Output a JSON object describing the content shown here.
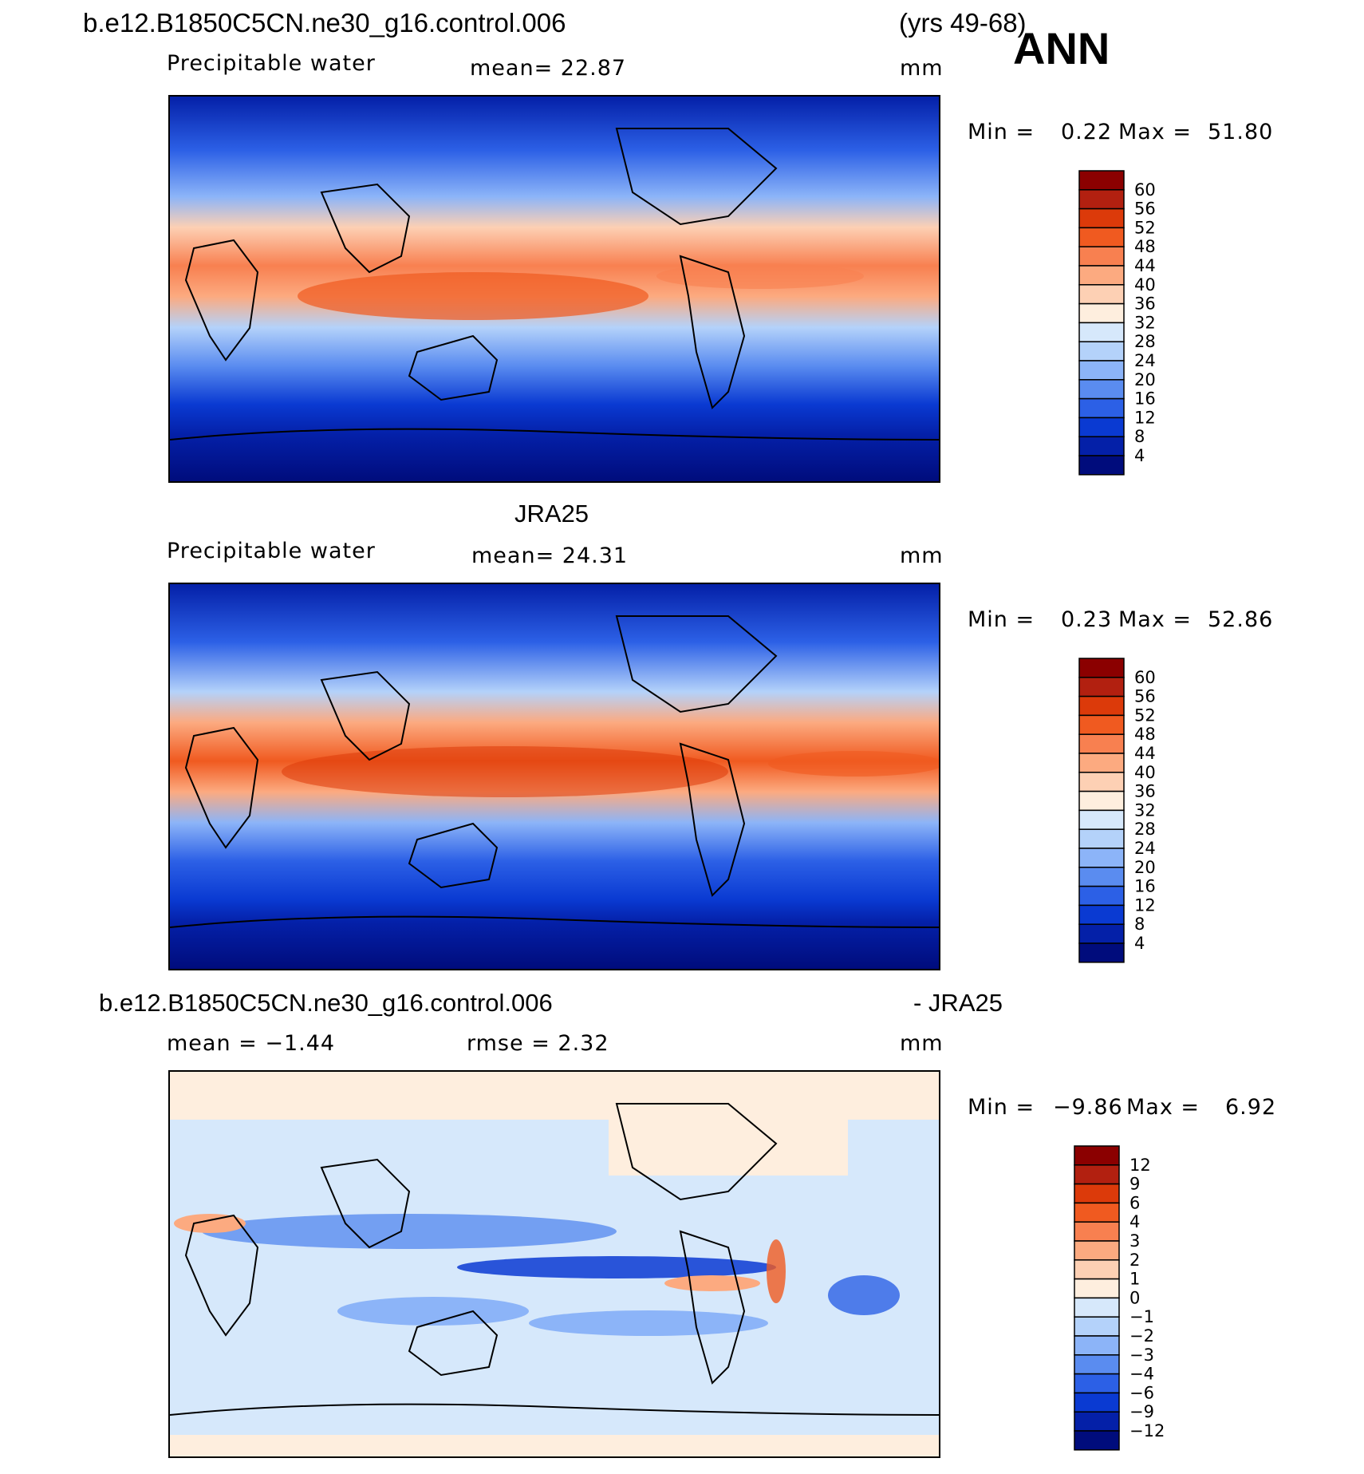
{
  "header": {
    "case_name": "b.e12.B1850C5CN.ne30_g16.control.006",
    "years": "(yrs 49-68)",
    "season": "ANN"
  },
  "panels": [
    {
      "title": "",
      "variable": "Precipitable water",
      "mean_text": "mean=   22.87",
      "units": "mm",
      "min_text": "Min =",
      "min_value": "0.22",
      "max_text": "Max =",
      "max_value": "51.80",
      "scale": "abs",
      "colorbar_labels": [
        "60",
        "56",
        "52",
        "48",
        "44",
        "40",
        "36",
        "32",
        "28",
        "24",
        "20",
        "16",
        "12",
        "8",
        "4"
      ]
    },
    {
      "title": "JRA25",
      "variable": "Precipitable water",
      "mean_text": "mean=   24.31",
      "units": "mm",
      "min_text": "Min =",
      "min_value": "0.23",
      "max_text": "Max =",
      "max_value": "52.86",
      "scale": "abs",
      "colorbar_labels": [
        "60",
        "56",
        "52",
        "48",
        "44",
        "40",
        "36",
        "32",
        "28",
        "24",
        "20",
        "16",
        "12",
        "8",
        "4"
      ]
    },
    {
      "title_left": "b.e12.B1850C5CN.ne30_g16.control.006",
      "title_right": "- JRA25",
      "mean_text": "mean =   −1.44",
      "rmse_text": "rmse =     2.32",
      "units": "mm",
      "min_text": "Min =",
      "min_value": "−9.86",
      "max_text": "Max =",
      "max_value": "6.92",
      "scale": "diff",
      "colorbar_labels": [
        "12",
        "9",
        "6",
        "4",
        "3",
        "2",
        "1",
        "0",
        "−1",
        "−2",
        "−3",
        "−4",
        "−6",
        "−9",
        "−12"
      ]
    }
  ],
  "colors": {
    "abs_scale_top_to_bottom": [
      "#8b0000",
      "#b22010",
      "#dc3a0a",
      "#f05a20",
      "#f88050",
      "#fcaa80",
      "#fdd0b4",
      "#feeede",
      "#d6e8fb",
      "#b4d2fa",
      "#8cb4f8",
      "#5a8cf0",
      "#2c60e6",
      "#0a3ad2",
      "#0420a8",
      "#000c7c"
    ],
    "diff_scale_top_to_bottom": [
      "#8b0000",
      "#b22010",
      "#dc3a0a",
      "#f05a20",
      "#f88050",
      "#fcaa80",
      "#fdd0b4",
      "#feeede",
      "#d6e8fb",
      "#b4d2fa",
      "#8cb4f8",
      "#5a8cf0",
      "#2c60e6",
      "#0a3ad2",
      "#0420a8",
      "#000c7c"
    ]
  }
}
